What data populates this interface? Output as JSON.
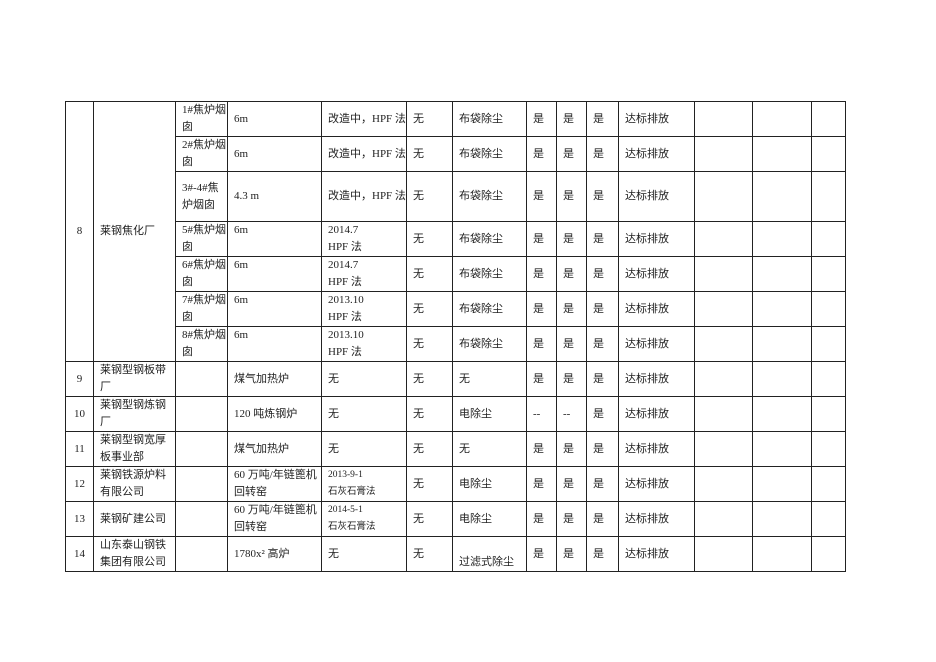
{
  "group8": {
    "no": "8",
    "unit": "莱钢焦化厂",
    "rows": [
      {
        "source": "1#焦炉烟囱",
        "height": "6m",
        "treatment": "改造中，HPF 法",
        "col5": "无",
        "dedust": "布袋除尘",
        "c1": "是",
        "c2": "是",
        "c3": "是",
        "status": "达标排放"
      },
      {
        "source": "2#焦炉烟囱",
        "height": "6m",
        "treatment": "改造中，HPF 法",
        "col5": "无",
        "dedust": "布袋除尘",
        "c1": "是",
        "c2": "是",
        "c3": "是",
        "status": "达标排放"
      },
      {
        "source": "3#-4#焦炉烟囱",
        "height": "4.3 m",
        "treatment": "改造中，HPF 法",
        "col5": "无",
        "dedust": "布袋除尘",
        "c1": "是",
        "c2": "是",
        "c3": "是",
        "status": "达标排放"
      },
      {
        "source": "5#焦炉烟囱",
        "height": "6m",
        "treatment": "2014.7\nHPF 法",
        "col5": "无",
        "dedust": "布袋除尘",
        "c1": "是",
        "c2": "是",
        "c3": "是",
        "status": "达标排放"
      },
      {
        "source": "6#焦炉烟囱",
        "height": "6m",
        "treatment": "2014.7\nHPF 法",
        "col5": "无",
        "dedust": "布袋除尘",
        "c1": "是",
        "c2": "是",
        "c3": "是",
        "status": "达标排放"
      },
      {
        "source": "7#焦炉烟囱",
        "height": "6m",
        "treatment": "2013.10\nHPF 法",
        "col5": "无",
        "dedust": "布袋除尘",
        "c1": "是",
        "c2": "是",
        "c3": "是",
        "status": "达标排放"
      },
      {
        "source": "8#焦炉烟囱",
        "height": "6m",
        "treatment": "2013.10\nHPF 法",
        "col5": "无",
        "dedust": "布袋除尘",
        "c1": "是",
        "c2": "是",
        "c3": "是",
        "status": "达标排放"
      }
    ]
  },
  "rows": [
    {
      "no": "9",
      "unit": "莱钢型钢板带厂",
      "source": "",
      "height": "煤气加热炉",
      "treatment": "无",
      "col5": "无",
      "dedust": "无",
      "c1": "是",
      "c2": "是",
      "c3": "是",
      "status": "达标排放"
    },
    {
      "no": "10",
      "unit": "莱钢型钢炼钢厂",
      "source": "",
      "height": "120 吨炼钢炉",
      "treatment": "无",
      "col5": "无",
      "dedust": "电除尘",
      "c1": "--",
      "c2": "--",
      "c3": "是",
      "status": "达标排放"
    },
    {
      "no": "11",
      "unit": "莱钢型钢宽厚板事业部",
      "source": "",
      "height": "煤气加热炉",
      "treatment": "无",
      "col5": "无",
      "dedust": "无",
      "c1": "是",
      "c2": "是",
      "c3": "是",
      "status": "达标排放"
    },
    {
      "no": "12",
      "unit": "莱钢铁源炉料有限公司",
      "source": "",
      "height": "60 万吨/年链篦机回转窑",
      "treatment": "2013-9-1\n石灰石膏法",
      "col5": "无",
      "dedust": "电除尘",
      "c1": "是",
      "c2": "是",
      "c3": "是",
      "status": "达标排放"
    },
    {
      "no": "13",
      "unit": "莱钢矿建公司",
      "source": "",
      "height": "60 万吨/年链篦机回转窑",
      "treatment": "2014-5-1\n石灰石膏法",
      "col5": "无",
      "dedust": "电除尘",
      "c1": "是",
      "c2": "是",
      "c3": "是",
      "status": "达标排放"
    },
    {
      "no": "14",
      "unit": "山东泰山钢铁集团有限公司",
      "source": "",
      "height": "1780x² 高炉",
      "treatment": "无",
      "col5": "无",
      "dedust": "过滤式除尘",
      "c1": "是",
      "c2": "是",
      "c3": "是",
      "status": "达标排放"
    }
  ]
}
